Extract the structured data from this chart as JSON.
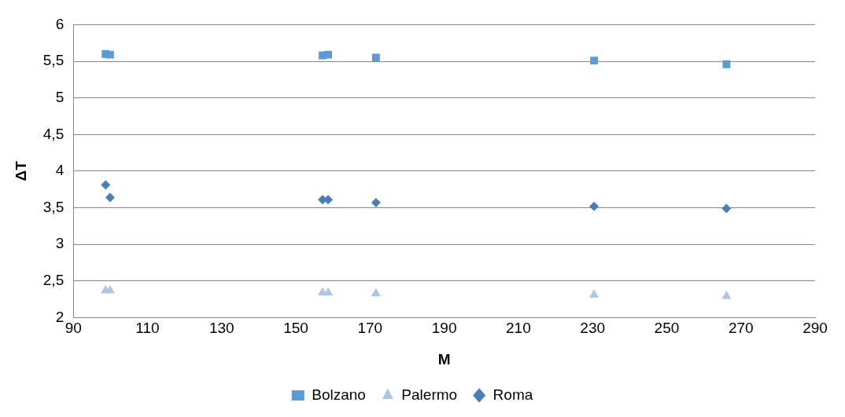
{
  "chart_data": {
    "type": "scatter",
    "xlabel": "M",
    "ylabel": "ΔT",
    "xlim": [
      90,
      290
    ],
    "xticks": [
      90,
      110,
      130,
      150,
      170,
      190,
      210,
      230,
      250,
      270,
      290
    ],
    "ylim": [
      2,
      6
    ],
    "yticks": [
      2,
      {
        "value": 2.5,
        "label": "2,5"
      },
      3,
      {
        "value": 3.5,
        "label": "3,5"
      },
      4,
      {
        "value": 4.5,
        "label": "4,5"
      },
      5,
      {
        "value": 5.5,
        "label": "5,5"
      },
      6
    ],
    "grid": "y",
    "legend": "bottom",
    "x": [
      98.7,
      99.9,
      157.2,
      158.7,
      171.6,
      230.4,
      266.1
    ],
    "series": [
      {
        "name": "Bolzano",
        "color": "#5b9bd5",
        "marker": "square",
        "values": [
          5.6,
          5.59,
          5.58,
          5.59,
          5.55,
          5.51,
          5.46
        ]
      },
      {
        "name": "Palermo",
        "color": "#adc6e6",
        "marker": "triangle",
        "values": [
          2.37,
          2.37,
          2.34,
          2.34,
          2.33,
          2.31,
          2.29
        ]
      },
      {
        "name": "Roma",
        "color": "#4a7ebb",
        "marker": "diamond",
        "values": [
          3.81,
          3.64,
          3.61,
          3.61,
          3.57,
          3.52,
          3.49
        ]
      }
    ]
  }
}
